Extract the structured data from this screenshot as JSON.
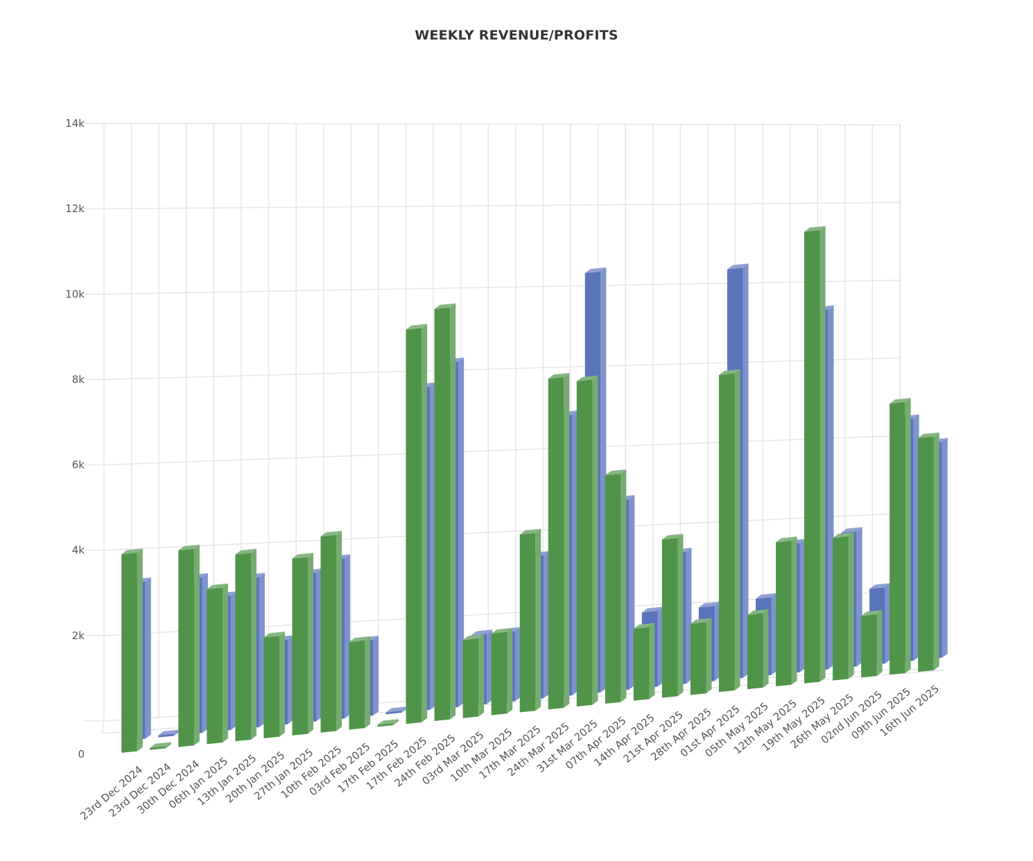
{
  "chart_data": {
    "type": "bar",
    "title": "WEEKLY REVENUE/PROFITS",
    "xlabel": "",
    "ylabel": "",
    "ylim": [
      0,
      14000
    ],
    "yticks": [
      {
        "value": 0,
        "label": "0"
      },
      {
        "value": 2000,
        "label": "2k"
      },
      {
        "value": 4000,
        "label": "4k"
      },
      {
        "value": 6000,
        "label": "6k"
      },
      {
        "value": 8000,
        "label": "8k"
      },
      {
        "value": 10000,
        "label": "10k"
      },
      {
        "value": 12000,
        "label": "12k"
      },
      {
        "value": 14000,
        "label": "14k"
      }
    ],
    "categories": [
      "23rd Dec 2024",
      "23rd Dec 2024",
      "30th Dec 2024",
      "06th Jan 2025",
      "13th Jan 2025",
      "20th Jan 2025",
      "27th Jan 2025",
      "10th Feb 2025",
      "03rd Feb 2025",
      "17th Feb 2025",
      "17th Feb 2025",
      "24th Feb 2025",
      "03rd Mar 2025",
      "10th Mar 2025",
      "17th Mar 2025",
      "24th Mar 2025",
      "31st Mar 2025",
      "07th Apr 2025",
      "14th Apr 2025",
      "21st Apr 2025",
      "28th Apr 2025",
      "01st Apr 2025",
      "05th May 2025",
      "12th May 2025",
      "19th May 2025",
      "26th May 2025",
      "02nd Jun 2025",
      "09th Jun 2025",
      "16th Jun 2025"
    ],
    "grid": true,
    "legend": false,
    "series": [
      {
        "color": "#5a74bb",
        "values": [
          3800,
          50,
          3800,
          3300,
          3700,
          2100,
          3700,
          4000,
          1900,
          50,
          8200,
          8800,
          1800,
          1800,
          3700,
          7300,
          11000,
          5000,
          2000,
          3500,
          2000,
          11000,
          2100,
          3500,
          9800,
          3700,
          2100,
          6700,
          6000
        ]
      },
      {
        "color": "#4f9449",
        "values": [
          4800,
          50,
          4800,
          3800,
          4600,
          2500,
          4400,
          4900,
          2200,
          50,
          10000,
          10500,
          2000,
          2100,
          4600,
          8600,
          8500,
          6000,
          1900,
          4200,
          1900,
          8500,
          2000,
          3900,
          12300,
          3900,
          1700,
          7500,
          6500
        ]
      }
    ]
  }
}
